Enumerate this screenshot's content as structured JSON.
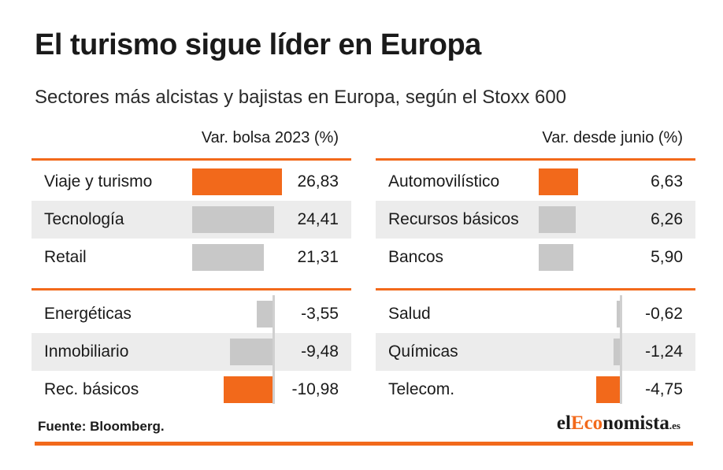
{
  "title": "El turismo sigue líder en Europa",
  "subtitle": "Sectores más alcistas y bajistas en Europa, según el Stoxx 600",
  "source": "Fuente: Bloomberg.",
  "logo": {
    "prefix": "el",
    "accent": "Eco",
    "rest": "nomista",
    "tld": ".es"
  },
  "colors": {
    "accent": "#f2691b",
    "neutral_bar": "#c8c8c8",
    "row_shade": "#ececec"
  },
  "chart_data": [
    {
      "type": "bar",
      "header": "Var. bolsa 2023 (%)",
      "top": {
        "categories": [
          "Viaje y turismo",
          "Tecnología",
          "Retail"
        ],
        "values": [
          26.83,
          24.41,
          21.31
        ],
        "labels": [
          "26,83",
          "24,41",
          "21,31"
        ],
        "highlight": [
          true,
          false,
          false
        ]
      },
      "bottom": {
        "categories": [
          "Energéticas",
          "Inmobiliario",
          "Rec. básicos"
        ],
        "values": [
          -3.55,
          -9.48,
          -10.98
        ],
        "labels": [
          "-3,55",
          "-9,48",
          "-10,98"
        ],
        "highlight": [
          false,
          false,
          true
        ]
      }
    },
    {
      "type": "bar",
      "header": "Var. desde junio (%)",
      "top": {
        "categories": [
          "Automovilístico",
          "Recursos básicos",
          "Bancos"
        ],
        "values": [
          6.63,
          6.26,
          5.9
        ],
        "labels": [
          "6,63",
          "6,26",
          "5,90"
        ],
        "highlight": [
          true,
          false,
          false
        ]
      },
      "bottom": {
        "categories": [
          "Salud",
          "Químicas",
          "Telecom."
        ],
        "values": [
          -0.62,
          -1.24,
          -4.75
        ],
        "labels": [
          "-0,62",
          "-1,24",
          "-4,75"
        ],
        "highlight": [
          false,
          false,
          true
        ]
      }
    }
  ]
}
